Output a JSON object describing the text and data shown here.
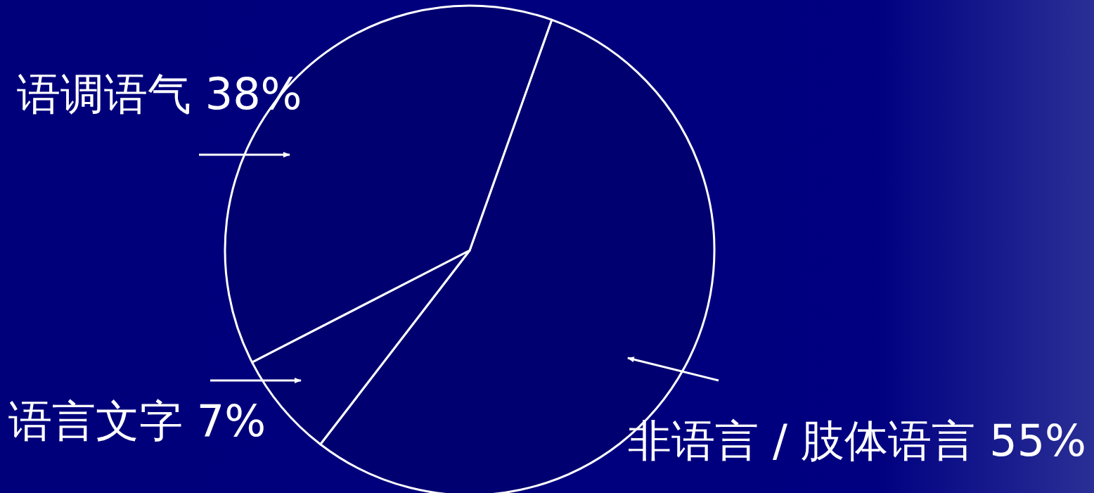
{
  "chart_data": {
    "type": "pie",
    "categories": [
      "非语言 / 肢体语言",
      "语言文字",
      "语调语气"
    ],
    "values": [
      55,
      7,
      38
    ],
    "colors": [
      "#000070",
      "#000070",
      "#000070"
    ],
    "value_labels": [
      "55%",
      "7%",
      "38%"
    ]
  }
}
